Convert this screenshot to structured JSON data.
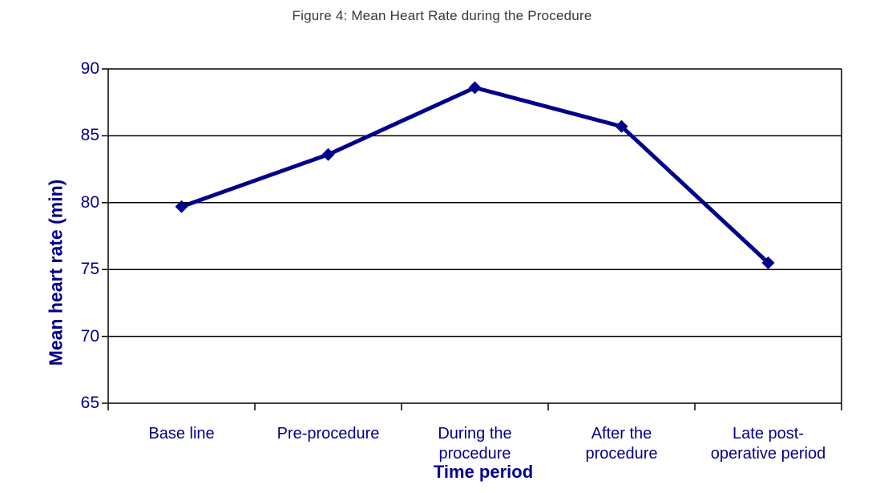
{
  "chart_data": {
    "type": "line",
    "title": "Figure 4: Mean Heart Rate during the Procedure",
    "categories": [
      "Base line",
      "Pre-procedure",
      "During the\nprocedure",
      "After the\nprocedure",
      "Late post-\noperative period"
    ],
    "series": [
      {
        "name": "Mean heart rate",
        "values": [
          79.7,
          83.6,
          88.6,
          85.7,
          75.5
        ]
      }
    ],
    "xlabel": "Time period",
    "ylabel": "Mean heart rate (min)",
    "ylim": [
      65,
      90
    ],
    "yticks": [
      65,
      70,
      75,
      80,
      85,
      90
    ],
    "grid": "horizontal",
    "legend": "none",
    "marker": "diamond",
    "colors": {
      "series_line": "#00008B",
      "axis_text": "#00008B",
      "grid_line": "#000000",
      "title_text": "#383838",
      "background": "#FFFFFF"
    }
  }
}
